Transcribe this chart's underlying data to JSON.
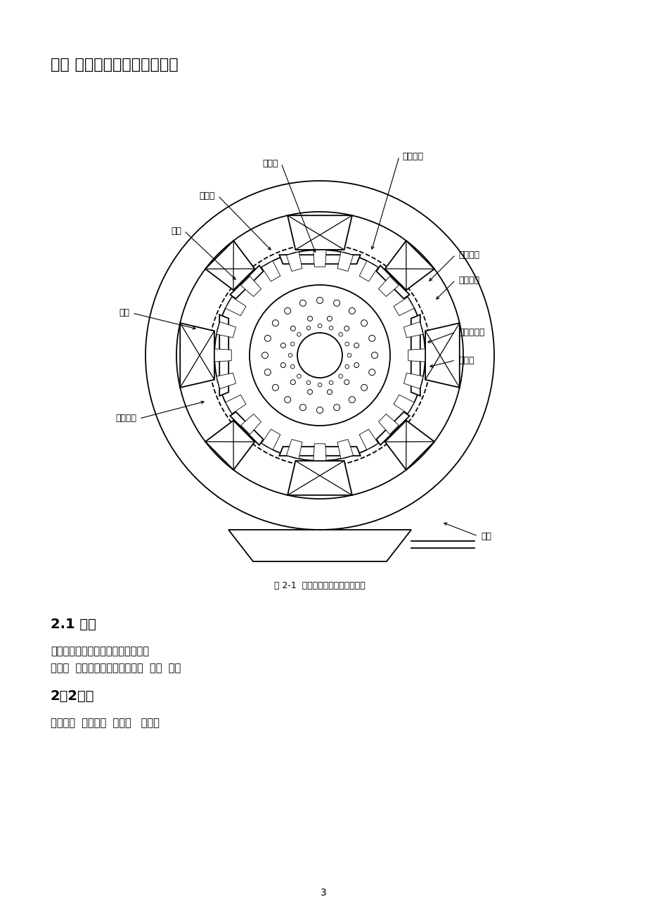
{
  "bg_color": "#ffffff",
  "title": "二． 他励直流电动的基本结构",
  "fig_caption": "图 2-1  他励直流电动机的基本结构",
  "section21_title": "2.1 定子",
  "section21_text1": "直流电机的定子由以下几部分组成：",
  "section21_text2": "主磁极  换向磁极（简称换向极）  机座  端盖",
  "section22_title": "2．2转子",
  "section22_text": "电枢铁心  电枢绕组  换向器   风扇等",
  "page_number": "3",
  "label_dianchizhi": "电枢齿",
  "label_dianchiraozhu": "电枢绕组",
  "label_dianchicao": "电枢槽",
  "label_jizhang": "极掌",
  "label_jishen": "极身",
  "label_jiciraozhu": "激磁绕组",
  "label_dianchiciyoke": "电枢磁轪",
  "label_dingziciyoke": "定子磁轪",
  "label_huanxiangjiraozhu": "换向极绕组",
  "label_huanxiangji": "换向极",
  "label_dijiao": "底脚"
}
